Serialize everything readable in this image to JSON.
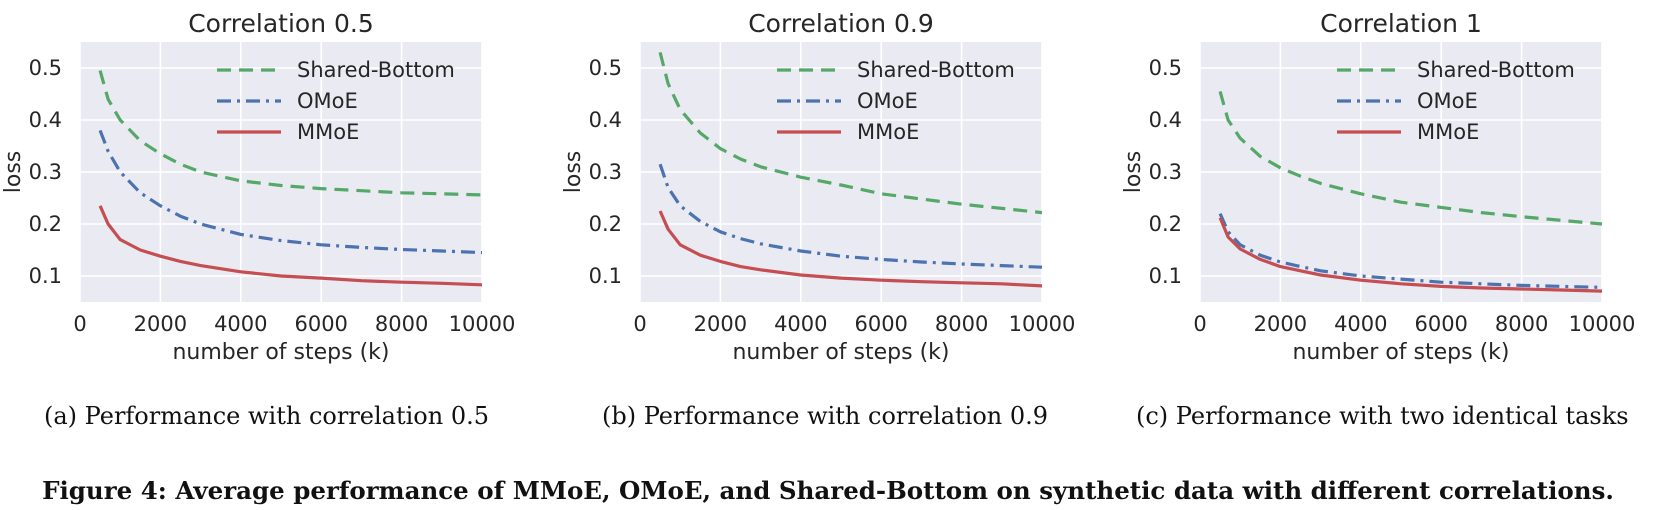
{
  "chart_data": [
    {
      "type": "line",
      "title": "Correlation 0.5",
      "xlabel": "number of steps (k)",
      "ylabel": "loss",
      "xlim": [
        0,
        10000
      ],
      "ylim": [
        0.05,
        0.55
      ],
      "xticks": [
        0,
        2000,
        4000,
        6000,
        8000,
        10000
      ],
      "yticks": [
        0.1,
        0.2,
        0.3,
        0.4,
        0.5
      ],
      "grid": true,
      "legend": "top-right",
      "series": [
        {
          "name": "Shared-Bottom",
          "color": "#55a868",
          "dash": "dashed",
          "x": [
            500,
            700,
            1000,
            1500,
            2000,
            2500,
            3000,
            4000,
            5000,
            6000,
            7000,
            8000,
            9000,
            10000
          ],
          "y": [
            0.495,
            0.44,
            0.4,
            0.36,
            0.335,
            0.315,
            0.3,
            0.283,
            0.274,
            0.268,
            0.264,
            0.26,
            0.258,
            0.256
          ]
        },
        {
          "name": "OMoE",
          "color": "#4c72b0",
          "dash": "dashdot",
          "x": [
            500,
            700,
            1000,
            1500,
            2000,
            2500,
            3000,
            4000,
            5000,
            6000,
            7000,
            8000,
            9000,
            10000
          ],
          "y": [
            0.38,
            0.34,
            0.3,
            0.26,
            0.235,
            0.215,
            0.2,
            0.18,
            0.168,
            0.16,
            0.155,
            0.151,
            0.148,
            0.145
          ]
        },
        {
          "name": "MMoE",
          "color": "#c44e52",
          "dash": "solid",
          "x": [
            500,
            700,
            1000,
            1500,
            2000,
            2500,
            3000,
            4000,
            5000,
            6000,
            7000,
            8000,
            9000,
            10000
          ],
          "y": [
            0.235,
            0.2,
            0.17,
            0.15,
            0.138,
            0.128,
            0.12,
            0.108,
            0.1,
            0.096,
            0.091,
            0.088,
            0.086,
            0.083
          ]
        }
      ]
    },
    {
      "type": "line",
      "title": "Correlation 0.9",
      "xlabel": "number of steps (k)",
      "ylabel": "loss",
      "xlim": [
        0,
        10000
      ],
      "ylim": [
        0.05,
        0.55
      ],
      "xticks": [
        0,
        2000,
        4000,
        6000,
        8000,
        10000
      ],
      "yticks": [
        0.1,
        0.2,
        0.3,
        0.4,
        0.5
      ],
      "grid": true,
      "legend": "top-right",
      "series": [
        {
          "name": "Shared-Bottom",
          "color": "#55a868",
          "dash": "dashed",
          "x": [
            500,
            700,
            1000,
            1500,
            2000,
            2500,
            3000,
            4000,
            5000,
            6000,
            7000,
            8000,
            9000,
            10000
          ],
          "y": [
            0.53,
            0.47,
            0.42,
            0.375,
            0.345,
            0.325,
            0.31,
            0.29,
            0.275,
            0.258,
            0.248,
            0.238,
            0.23,
            0.222
          ]
        },
        {
          "name": "OMoE",
          "color": "#4c72b0",
          "dash": "dashdot",
          "x": [
            500,
            700,
            1000,
            1500,
            2000,
            2500,
            3000,
            4000,
            5000,
            6000,
            7000,
            8000,
            9000,
            10000
          ],
          "y": [
            0.315,
            0.27,
            0.235,
            0.205,
            0.185,
            0.172,
            0.162,
            0.148,
            0.138,
            0.132,
            0.127,
            0.123,
            0.12,
            0.117
          ]
        },
        {
          "name": "MMoE",
          "color": "#c44e52",
          "dash": "solid",
          "x": [
            500,
            700,
            1000,
            1500,
            2000,
            2500,
            3000,
            4000,
            5000,
            6000,
            7000,
            8000,
            9000,
            10000
          ],
          "y": [
            0.225,
            0.19,
            0.16,
            0.14,
            0.128,
            0.118,
            0.112,
            0.102,
            0.096,
            0.092,
            0.089,
            0.087,
            0.085,
            0.081
          ]
        }
      ]
    },
    {
      "type": "line",
      "title": "Correlation 1",
      "xlabel": "number of steps (k)",
      "ylabel": "loss",
      "xlim": [
        0,
        10000
      ],
      "ylim": [
        0.05,
        0.55
      ],
      "xticks": [
        0,
        2000,
        4000,
        6000,
        8000,
        10000
      ],
      "yticks": [
        0.1,
        0.2,
        0.3,
        0.4,
        0.5
      ],
      "grid": true,
      "legend": "top-right",
      "series": [
        {
          "name": "Shared-Bottom",
          "color": "#55a868",
          "dash": "dashed",
          "x": [
            500,
            700,
            1000,
            1500,
            2000,
            2500,
            3000,
            4000,
            5000,
            6000,
            7000,
            8000,
            9000,
            10000
          ],
          "y": [
            0.455,
            0.4,
            0.365,
            0.33,
            0.308,
            0.292,
            0.278,
            0.258,
            0.242,
            0.232,
            0.222,
            0.214,
            0.207,
            0.2
          ]
        },
        {
          "name": "OMoE",
          "color": "#4c72b0",
          "dash": "dashdot",
          "x": [
            500,
            700,
            1000,
            1500,
            2000,
            2500,
            3000,
            4000,
            5000,
            6000,
            7000,
            8000,
            9000,
            10000
          ],
          "y": [
            0.22,
            0.185,
            0.16,
            0.14,
            0.127,
            0.118,
            0.11,
            0.1,
            0.094,
            0.088,
            0.085,
            0.082,
            0.08,
            0.078
          ]
        },
        {
          "name": "MMoE",
          "color": "#c44e52",
          "dash": "solid",
          "x": [
            500,
            700,
            1000,
            1500,
            2000,
            2500,
            3000,
            4000,
            5000,
            6000,
            7000,
            8000,
            9000,
            10000
          ],
          "y": [
            0.212,
            0.175,
            0.152,
            0.132,
            0.118,
            0.11,
            0.102,
            0.092,
            0.085,
            0.08,
            0.077,
            0.075,
            0.073,
            0.071
          ]
        }
      ]
    }
  ],
  "subcaptions": [
    "(a) Performance with correlation 0.5",
    "(b) Performance with correlation 0.9",
    "(c) Performance with two identical tasks"
  ],
  "figure_caption": "Figure 4: Average performance of MMoE, OMoE, and Shared-Bottom on synthetic data with different correlations.",
  "colors": {
    "plot_background": "#eaeaf2",
    "grid": "#ffffff",
    "text": "#262626"
  }
}
